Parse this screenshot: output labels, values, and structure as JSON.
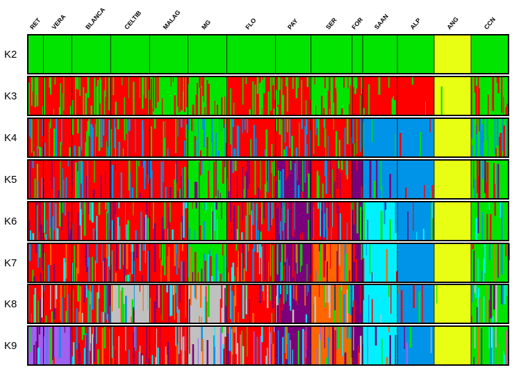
{
  "chart_data": {
    "type": "bar",
    "subtype": "stacked-membership (STRUCTURE ancestry bar plot)",
    "populations": [
      "RET",
      "VERA",
      "BLANCA",
      "CELTIB",
      "MALAG",
      "MG",
      "FLO",
      "PAY",
      "SER",
      "FOR",
      "SAAN",
      "ALP",
      "ANG",
      "CCN"
    ],
    "population_widths": [
      22,
      40,
      55,
      55,
      54,
      55,
      69,
      50,
      58,
      15,
      49,
      52,
      52,
      53
    ],
    "rows": [
      "K2",
      "K3",
      "K4",
      "K5",
      "K6",
      "K7",
      "K8",
      "K9"
    ],
    "cluster_colors": {
      "green": "#00e400",
      "red": "#ff0000",
      "yellow": "#e8ff14",
      "blue": "#0094e8",
      "purple": "#7b007b",
      "cyan": "#00f0ff",
      "orange": "#ff6600",
      "grey": "#c0c0c0",
      "violet": "#a060f0"
    },
    "dominant_cluster": {
      "K2": [
        "green",
        "green",
        "green",
        "green",
        "green",
        "green",
        "green",
        "green",
        "green",
        "green",
        "green",
        "green",
        "yellow",
        "green"
      ],
      "K3": [
        "red",
        "red",
        "red",
        "red",
        "green",
        "green",
        "red",
        "red",
        "green",
        "red",
        "red",
        "red",
        "yellow",
        "green"
      ],
      "K4": [
        "red",
        "red",
        "red",
        "red",
        "red",
        "green",
        "red",
        "red",
        "red",
        "red",
        "blue",
        "blue",
        "yellow",
        "green"
      ],
      "K5": [
        "red",
        "red",
        "red",
        "red",
        "red",
        "green",
        "red",
        "purple",
        "red",
        "purple",
        "blue",
        "blue",
        "yellow",
        "green"
      ],
      "K6": [
        "red",
        "red",
        "red",
        "red",
        "red",
        "green",
        "red",
        "purple",
        "red",
        "purple",
        "cyan",
        "blue",
        "yellow",
        "green"
      ],
      "K7": [
        "red",
        "red",
        "red",
        "red",
        "red",
        "green",
        "red",
        "purple",
        "orange",
        "purple",
        "cyan",
        "blue",
        "yellow",
        "green"
      ],
      "K8": [
        "red",
        "red",
        "red",
        "grey",
        "red",
        "grey",
        "red",
        "purple",
        "orange",
        "purple",
        "cyan",
        "blue",
        "yellow",
        "green"
      ],
      "K9": [
        "violet",
        "violet",
        "red",
        "red",
        "red",
        "grey",
        "red",
        "purple",
        "orange",
        "purple",
        "cyan",
        "blue",
        "yellow",
        "green"
      ]
    }
  }
}
